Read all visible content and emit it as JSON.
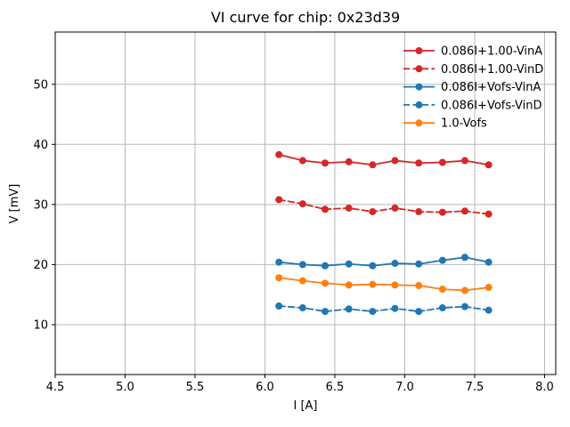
{
  "figure": {
    "title": "VI curve for chip: 0x23d39"
  },
  "chart_data": {
    "type": "line",
    "title": "VI curve for chip: 0x23d39",
    "xlabel": "I [A]",
    "ylabel": "V [mV]",
    "xlim": [
      4.5,
      8.08
    ],
    "ylim": [
      1.7,
      58.7
    ],
    "xticks": [
      4.5,
      5.0,
      5.5,
      6.0,
      6.5,
      7.0,
      7.5,
      8.0
    ],
    "xtick_labels": [
      "4.5",
      "5.0",
      "5.5",
      "6.0",
      "6.5",
      "7.0",
      "7.5",
      "8.0"
    ],
    "yticks": [
      10,
      20,
      30,
      40,
      50
    ],
    "ytick_labels": [
      "10",
      "20",
      "30",
      "40",
      "50"
    ],
    "grid": true,
    "legend_position": "upper right",
    "legend_frame": false,
    "x": [
      6.1,
      6.27,
      6.43,
      6.6,
      6.77,
      6.93,
      7.1,
      7.27,
      7.43,
      7.6
    ],
    "series": [
      {
        "name": "0.086I+1.00-VinA",
        "color": "#d62728",
        "linestyle": "solid",
        "marker": "circle",
        "values": [
          38.3,
          37.3,
          36.9,
          37.1,
          36.6,
          37.3,
          36.9,
          37.0,
          37.3,
          36.6
        ]
      },
      {
        "name": "0.086I+1.00-VinD",
        "color": "#d62728",
        "linestyle": "dashed",
        "marker": "circle",
        "values": [
          30.8,
          30.1,
          29.2,
          29.4,
          28.8,
          29.4,
          28.8,
          28.7,
          28.9,
          28.4
        ]
      },
      {
        "name": "0.086I+Vofs-VinA",
        "color": "#1f77b4",
        "linestyle": "solid",
        "marker": "circle",
        "values": [
          20.4,
          20.0,
          19.8,
          20.1,
          19.8,
          20.2,
          20.1,
          20.7,
          21.2,
          20.4
        ]
      },
      {
        "name": "0.086I+Vofs-VinD",
        "color": "#1f77b4",
        "linestyle": "dashed",
        "marker": "circle",
        "values": [
          13.1,
          12.8,
          12.2,
          12.6,
          12.2,
          12.7,
          12.2,
          12.8,
          13.0,
          12.4
        ]
      },
      {
        "name": "1.0-Vofs",
        "color": "#ff7f0e",
        "linestyle": "solid",
        "marker": "circle",
        "values": [
          17.8,
          17.3,
          16.9,
          16.6,
          16.7,
          16.6,
          16.5,
          15.9,
          15.7,
          16.2
        ]
      }
    ],
    "colors": {
      "grid": "#b8b8b8",
      "axis": "#000000",
      "background": "#ffffff"
    }
  }
}
